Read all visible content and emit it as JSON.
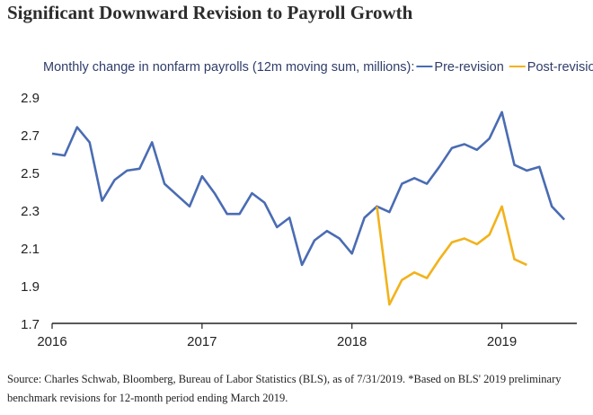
{
  "title": "Significant Downward Revision to Payroll Growth",
  "source_note": "Source: Charles Schwab, Bloomberg, Bureau of Labor Statistics (BLS), as of 7/31/2019.  *Based on BLS' 2019 preliminary benchmark revisions for 12-month period ending March 2019.",
  "colors": {
    "pre": "#4a6cb3",
    "post": "#f2b21b",
    "axis": "#222222"
  },
  "chart_data": {
    "type": "line",
    "subtitle": "Monthly change in nonfarm payrolls (12m moving sum, millions):",
    "legend_position": "top-right",
    "ylim": [
      1.7,
      2.9
    ],
    "yticks": [
      "2.9",
      "2.7",
      "2.5",
      "2.3",
      "2.1",
      "1.9",
      "1.7"
    ],
    "xlim": [
      "2016-01",
      "2019-07"
    ],
    "xticks": [
      "2016",
      "2017",
      "2018",
      "2019"
    ],
    "grid": false,
    "series": [
      {
        "name": "Pre-revision",
        "color": "#4a6cb3",
        "x": [
          "2016-01",
          "2016-02",
          "2016-03",
          "2016-04",
          "2016-05",
          "2016-06",
          "2016-07",
          "2016-08",
          "2016-09",
          "2016-10",
          "2016-11",
          "2016-12",
          "2017-01",
          "2017-02",
          "2017-03",
          "2017-04",
          "2017-05",
          "2017-06",
          "2017-07",
          "2017-08",
          "2017-09",
          "2017-10",
          "2017-11",
          "2017-12",
          "2018-01",
          "2018-02",
          "2018-03",
          "2018-04",
          "2018-05",
          "2018-06",
          "2018-07",
          "2018-08",
          "2018-09",
          "2018-10",
          "2018-11",
          "2018-12",
          "2019-01",
          "2019-02",
          "2019-03",
          "2019-04",
          "2019-05",
          "2019-06"
        ],
        "y": [
          2.6,
          2.59,
          2.74,
          2.66,
          2.35,
          2.46,
          2.51,
          2.52,
          2.66,
          2.44,
          2.38,
          2.32,
          2.48,
          2.39,
          2.28,
          2.28,
          2.39,
          2.34,
          2.21,
          2.26,
          2.01,
          2.14,
          2.19,
          2.15,
          2.07,
          2.26,
          2.32,
          2.29,
          2.44,
          2.47,
          2.44,
          2.53,
          2.63,
          2.65,
          2.62,
          2.68,
          2.82,
          2.54,
          2.51,
          2.53,
          2.32,
          2.25
        ]
      },
      {
        "name": "Post-revision*",
        "color": "#f2b21b",
        "x": [
          "2018-03",
          "2018-04",
          "2018-05",
          "2018-06",
          "2018-07",
          "2018-08",
          "2018-09",
          "2018-10",
          "2018-11",
          "2018-12",
          "2019-01",
          "2019-02",
          "2019-03"
        ],
        "y": [
          2.32,
          1.8,
          1.93,
          1.97,
          1.94,
          2.04,
          2.13,
          2.15,
          2.12,
          2.17,
          2.32,
          2.04,
          2.01
        ]
      }
    ]
  }
}
